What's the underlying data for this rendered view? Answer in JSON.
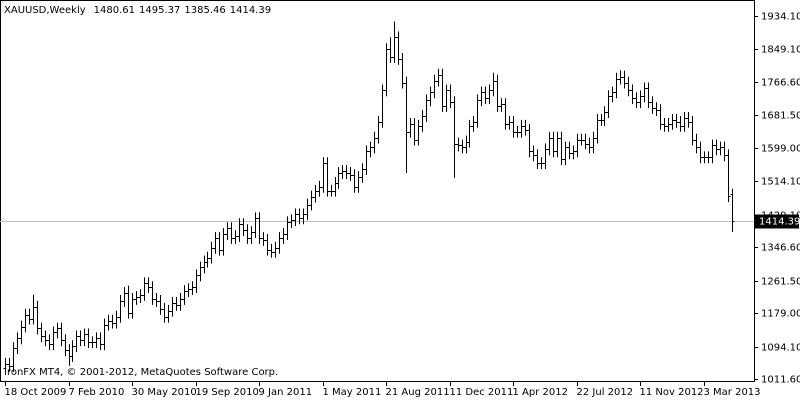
{
  "chart_data": {
    "type": "ohlc",
    "title": "XAUUSD,Weekly",
    "footer": "IronFX MT4, © 2001-2012, MetaQuotes Software Corp.",
    "color": "#000000",
    "categories": [
      "18 Oct 2009",
      null,
      null,
      null,
      null,
      null,
      null,
      null,
      null,
      null,
      null,
      null,
      null,
      null,
      null,
      null,
      "7 Feb 2010",
      null,
      null,
      null,
      null,
      null,
      null,
      null,
      null,
      null,
      null,
      null,
      null,
      null,
      null,
      null,
      "30 May 2010",
      null,
      null,
      null,
      null,
      null,
      null,
      null,
      null,
      null,
      null,
      null,
      null,
      null,
      null,
      null,
      "19 Sep 2010",
      null,
      null,
      null,
      null,
      null,
      null,
      null,
      null,
      null,
      null,
      null,
      null,
      null,
      null,
      null,
      "9 Jan 2011",
      null,
      null,
      null,
      null,
      null,
      null,
      null,
      null,
      null,
      null,
      null,
      null,
      null,
      null,
      null,
      "1 May 2011",
      null,
      null,
      null,
      null,
      null,
      null,
      null,
      null,
      null,
      null,
      null,
      null,
      null,
      null,
      null,
      "21 Aug 2011",
      null,
      null,
      null,
      null,
      null,
      null,
      null,
      null,
      null,
      null,
      null,
      null,
      null,
      null,
      null,
      "11 Dec 2011",
      null,
      null,
      null,
      null,
      null,
      null,
      null,
      null,
      null,
      null,
      null,
      null,
      null,
      null,
      null,
      "1 Apr 2012",
      null,
      null,
      null,
      null,
      null,
      null,
      null,
      null,
      null,
      null,
      null,
      null,
      null,
      null,
      null,
      "22 Jul 2012",
      null,
      null,
      null,
      null,
      null,
      null,
      null,
      null,
      null,
      null,
      null,
      null,
      null,
      null,
      null,
      "11 Nov 2012",
      null,
      null,
      null,
      null,
      null,
      null,
      null,
      null,
      null,
      null,
      null,
      null,
      null,
      null,
      null,
      "3 Mar 2013",
      null,
      null,
      null,
      null,
      null,
      null,
      null
    ],
    "open": [
      1040,
      1050,
      1045,
      1090,
      1115,
      1145,
      1175,
      1165,
      1195,
      1140,
      1120,
      1110,
      1100,
      1130,
      1140,
      1110,
      1085,
      1070,
      1095,
      1120,
      1110,
      1125,
      1105,
      1105,
      1115,
      1100,
      1150,
      1160,
      1155,
      1170,
      1210,
      1230,
      1180,
      1215,
      1220,
      1225,
      1255,
      1245,
      1215,
      1210,
      1190,
      1170,
      1185,
      1205,
      1200,
      1215,
      1235,
      1240,
      1245,
      1275,
      1295,
      1310,
      1320,
      1345,
      1370,
      1340,
      1380,
      1395,
      1370,
      1375,
      1405,
      1390,
      1370,
      1385,
      1420,
      1370,
      1365,
      1340,
      1335,
      1345,
      1370,
      1380,
      1410,
      1415,
      1430,
      1420,
      1430,
      1455,
      1475,
      1490,
      1500,
      1560,
      1490,
      1490,
      1510,
      1535,
      1540,
      1535,
      1530,
      1500,
      1525,
      1545,
      1590,
      1600,
      1625,
      1665,
      1745,
      1850,
      1830,
      1880,
      1825,
      1765,
      1640,
      1660,
      1620,
      1655,
      1680,
      1720,
      1740,
      1770,
      1785,
      1705,
      1745,
      1715,
      1610,
      1605,
      1600,
      1615,
      1655,
      1665,
      1720,
      1740,
      1725,
      1745,
      1770,
      1705,
      1710,
      1660,
      1665,
      1640,
      1640,
      1655,
      1645,
      1590,
      1580,
      1560,
      1560,
      1595,
      1625,
      1590,
      1625,
      1570,
      1600,
      1585,
      1590,
      1620,
      1620,
      1610,
      1600,
      1625,
      1670,
      1670,
      1690,
      1730,
      1740,
      1775,
      1780,
      1765,
      1745,
      1725,
      1715,
      1730,
      1750,
      1715,
      1700,
      1695,
      1660,
      1655,
      1660,
      1670,
      1665,
      1655,
      1675,
      1665,
      1620,
      1600,
      1575,
      1575,
      1575,
      1605,
      1595,
      1600,
      1580,
      1480.61
    ],
    "high": [
      1065,
      1065,
      1105,
      1130,
      1160,
      1190,
      1190,
      1226,
      1210,
      1155,
      1135,
      1125,
      1145,
      1155,
      1155,
      1125,
      1100,
      1110,
      1135,
      1135,
      1140,
      1140,
      1120,
      1130,
      1130,
      1165,
      1175,
      1175,
      1185,
      1225,
      1245,
      1249,
      1230,
      1235,
      1240,
      1270,
      1270,
      1260,
      1230,
      1225,
      1205,
      1200,
      1220,
      1220,
      1230,
      1250,
      1255,
      1260,
      1290,
      1310,
      1325,
      1335,
      1360,
      1385,
      1385,
      1395,
      1410,
      1410,
      1390,
      1420,
      1420,
      1405,
      1400,
      1435,
      1435,
      1385,
      1380,
      1355,
      1360,
      1385,
      1395,
      1425,
      1430,
      1445,
      1445,
      1445,
      1470,
      1490,
      1505,
      1515,
      1575,
      1575,
      1505,
      1525,
      1550,
      1555,
      1555,
      1550,
      1545,
      1540,
      1560,
      1605,
      1615,
      1640,
      1680,
      1760,
      1865,
      1880,
      1920,
      1895,
      1840,
      1780,
      1675,
      1675,
      1670,
      1695,
      1735,
      1755,
      1785,
      1800,
      1800,
      1760,
      1760,
      1730,
      1625,
      1620,
      1630,
      1670,
      1680,
      1735,
      1755,
      1755,
      1760,
      1790,
      1785,
      1725,
      1725,
      1680,
      1680,
      1655,
      1670,
      1670,
      1660,
      1605,
      1595,
      1575,
      1610,
      1640,
      1640,
      1640,
      1640,
      1615,
      1615,
      1605,
      1635,
      1635,
      1635,
      1625,
      1640,
      1685,
      1685,
      1705,
      1745,
      1755,
      1790,
      1796,
      1795,
      1780,
      1760,
      1740,
      1745,
      1765,
      1765,
      1730,
      1715,
      1710,
      1675,
      1675,
      1685,
      1685,
      1680,
      1690,
      1690,
      1680,
      1635,
      1615,
      1590,
      1590,
      1620,
      1620,
      1615,
      1615,
      1595,
      1495.37
    ],
    "low": [
      1025,
      1030,
      1030,
      1075,
      1100,
      1130,
      1150,
      1150,
      1125,
      1105,
      1095,
      1085,
      1085,
      1115,
      1095,
      1070,
      1045,
      1055,
      1080,
      1095,
      1095,
      1090,
      1090,
      1090,
      1085,
      1085,
      1135,
      1140,
      1140,
      1155,
      1195,
      1165,
      1165,
      1200,
      1205,
      1210,
      1230,
      1200,
      1195,
      1175,
      1155,
      1155,
      1170,
      1185,
      1185,
      1200,
      1220,
      1225,
      1230,
      1260,
      1280,
      1295,
      1305,
      1330,
      1325,
      1325,
      1365,
      1355,
      1355,
      1360,
      1375,
      1355,
      1355,
      1370,
      1355,
      1350,
      1325,
      1320,
      1320,
      1330,
      1355,
      1365,
      1395,
      1400,
      1405,
      1405,
      1415,
      1440,
      1460,
      1475,
      1485,
      1475,
      1475,
      1475,
      1495,
      1520,
      1520,
      1515,
      1485,
      1485,
      1510,
      1530,
      1575,
      1585,
      1610,
      1650,
      1730,
      1815,
      1815,
      1810,
      1750,
      1535,
      1625,
      1605,
      1605,
      1640,
      1665,
      1705,
      1725,
      1755,
      1690,
      1690,
      1700,
      1523,
      1590,
      1585,
      1585,
      1600,
      1640,
      1650,
      1705,
      1710,
      1710,
      1730,
      1690,
      1690,
      1645,
      1645,
      1625,
      1625,
      1625,
      1630,
      1575,
      1565,
      1545,
      1545,
      1545,
      1580,
      1575,
      1575,
      1555,
      1555,
      1570,
      1570,
      1575,
      1605,
      1595,
      1585,
      1585,
      1610,
      1655,
      1655,
      1675,
      1715,
      1725,
      1760,
      1750,
      1730,
      1710,
      1700,
      1700,
      1715,
      1700,
      1685,
      1680,
      1645,
      1640,
      1640,
      1645,
      1650,
      1640,
      1640,
      1650,
      1605,
      1585,
      1560,
      1560,
      1560,
      1560,
      1580,
      1580,
      1565,
      1461,
      1385.46
    ],
    "close": [
      1050,
      1045,
      1090,
      1115,
      1145,
      1175,
      1165,
      1195,
      1140,
      1120,
      1110,
      1100,
      1130,
      1140,
      1110,
      1085,
      1070,
      1095,
      1120,
      1110,
      1125,
      1105,
      1105,
      1115,
      1100,
      1150,
      1160,
      1155,
      1170,
      1210,
      1230,
      1180,
      1215,
      1220,
      1225,
      1255,
      1245,
      1215,
      1210,
      1190,
      1170,
      1185,
      1205,
      1200,
      1215,
      1235,
      1240,
      1245,
      1275,
      1295,
      1310,
      1320,
      1345,
      1370,
      1340,
      1380,
      1395,
      1370,
      1375,
      1405,
      1390,
      1370,
      1385,
      1420,
      1370,
      1365,
      1340,
      1335,
      1345,
      1370,
      1380,
      1410,
      1415,
      1430,
      1420,
      1430,
      1455,
      1475,
      1490,
      1500,
      1560,
      1490,
      1490,
      1510,
      1535,
      1540,
      1535,
      1530,
      1500,
      1525,
      1545,
      1590,
      1600,
      1625,
      1665,
      1745,
      1850,
      1830,
      1880,
      1825,
      1765,
      1640,
      1660,
      1620,
      1655,
      1680,
      1720,
      1740,
      1770,
      1785,
      1705,
      1745,
      1715,
      1610,
      1605,
      1600,
      1615,
      1655,
      1665,
      1720,
      1740,
      1725,
      1745,
      1770,
      1705,
      1710,
      1660,
      1665,
      1640,
      1640,
      1655,
      1645,
      1590,
      1580,
      1560,
      1560,
      1595,
      1625,
      1590,
      1625,
      1570,
      1600,
      1585,
      1590,
      1620,
      1620,
      1610,
      1600,
      1625,
      1670,
      1670,
      1690,
      1730,
      1740,
      1775,
      1780,
      1765,
      1745,
      1725,
      1715,
      1730,
      1750,
      1715,
      1700,
      1695,
      1660,
      1655,
      1660,
      1670,
      1665,
      1655,
      1675,
      1665,
      1620,
      1600,
      1575,
      1575,
      1575,
      1605,
      1595,
      1600,
      1580,
      1476,
      1414.39
    ],
    "ylim": [
      1006.52,
      1974.76
    ],
    "yticks": [
      {
        "value": 1011.6,
        "label": "1011.60"
      },
      {
        "value": 1094.1,
        "label": "1094.10"
      },
      {
        "value": 1179,
        "label": "1179.00"
      },
      {
        "value": 1261.5,
        "label": "1261.50"
      },
      {
        "value": 1346.6,
        "label": "1346.60"
      },
      {
        "value": 1429.1,
        "label": "1429.10"
      },
      {
        "value": 1514.1,
        "label": "1514.10"
      },
      {
        "value": 1599,
        "label": "1599.00"
      },
      {
        "value": 1681.5,
        "label": "1681.50"
      },
      {
        "value": 1766.6,
        "label": "1766.60"
      },
      {
        "value": 1849.1,
        "label": "1849.10"
      },
      {
        "value": 1934.1,
        "label": "1934.10"
      }
    ],
    "price_line_color": "#c0c0c0"
  }
}
